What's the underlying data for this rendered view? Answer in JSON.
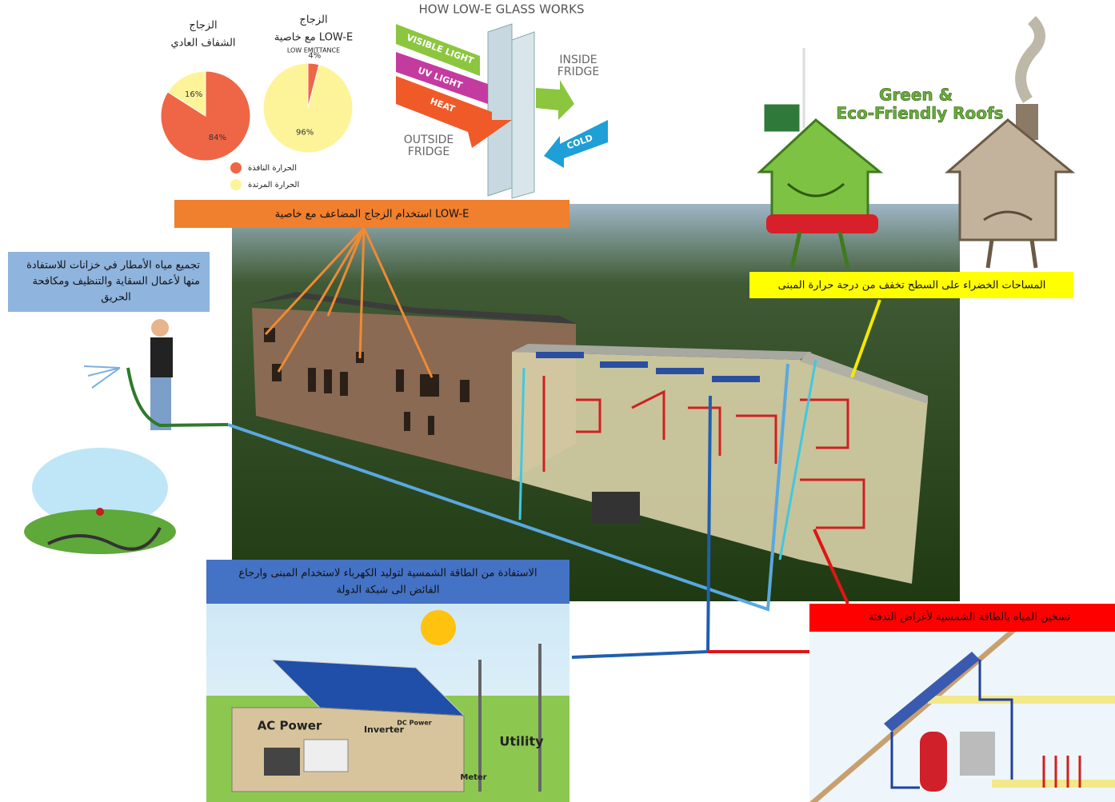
{
  "low_e_glass": {
    "title": "HOW LOW-E GLASS WORKS",
    "visible": "VISIBLE LIGHT",
    "uv": "UV LIGHT",
    "heat": "HEAT",
    "inside": [
      "INSIDE",
      "FRIDGE"
    ],
    "outside": [
      "OUTSIDE",
      "FRIDGE"
    ],
    "cold": "COLD"
  },
  "pies": [
    {
      "title_lines": [
        "الزجاج",
        "الشفاف العادي"
      ],
      "values": [
        84,
        16
      ],
      "value_labels": [
        "84%",
        "16%"
      ]
    },
    {
      "title_lines": [
        "الزجاج",
        "مع خاصية LOW-E"
      ],
      "subtitle": "LOW EMITTANCE",
      "values": [
        4,
        96
      ],
      "value_labels": [
        "4%",
        "96%"
      ]
    }
  ],
  "legend": [
    {
      "label": "الحرارة النافذة",
      "color": "#ee6646"
    },
    {
      "label": "الحرارة المرتدة",
      "color": "#fdf49a"
    }
  ],
  "roofs": {
    "title_lines": [
      "Green &",
      "Eco-Friendly Roofs"
    ]
  },
  "callouts": {
    "glass": "استخدام الزجاج المضاعف مع خاصية LOW-E",
    "rain": [
      "تجميع مياه الأمطار في خزانات للاستفادة",
      "منها لأعمال السقاية والتنظيف ومكافحة",
      "الحريق"
    ],
    "green_roof": "المساحات الخضراء على السطح تخفف من درجة حرارة المبنى",
    "solar": [
      "الاستفادة من الطاقة الشمسية لتوليد الكهرباء لاستخدام المبنى وارجاع",
      "الفائض الى شبكة الدولة"
    ],
    "water_heating": "تسخين المياه بالطاقة الشمسية لأغراض التدفئة"
  },
  "solar_diagram": {
    "ac_power": "AC Power",
    "inverter": "Inverter",
    "dc_power": "DC Power",
    "utility": "Utility",
    "meter": "Meter"
  }
}
